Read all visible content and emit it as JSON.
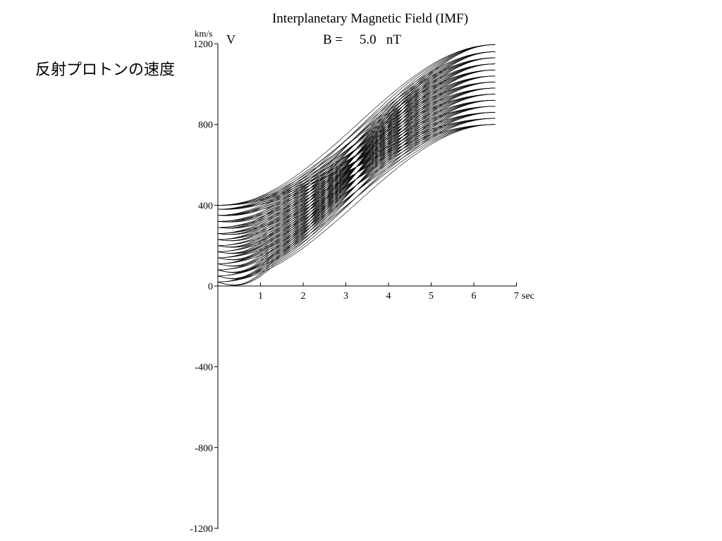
{
  "chart_data": {
    "type": "line",
    "title": "Interplanetary Magnetic Field (IMF)",
    "subtitle": "B =     5.0   nT",
    "annotation": "反射プロトンの速度",
    "ylabel": "V",
    "yunit": "km/s",
    "xunit": "sec",
    "xlim": [
      0,
      7
    ],
    "ylim": [
      -1200,
      1200
    ],
    "xticks": [
      1,
      2,
      3,
      4,
      5,
      6,
      7
    ],
    "yticks": [
      1200,
      800,
      400,
      0,
      -400,
      -800,
      -1200
    ],
    "ytick_labels": [
      "1200",
      "800",
      "400",
      "0",
      "-400",
      "-800",
      "-1200"
    ],
    "xtick_labels": [
      "1",
      "2",
      "3",
      "4",
      "5",
      "6",
      "7"
    ],
    "grid": false,
    "curve_model": {
      "t_end": 6.5,
      "start_speeds": [
        20,
        50,
        80,
        110,
        140,
        170,
        200,
        230,
        260,
        290,
        320,
        350,
        380,
        400
      ],
      "end_speeds": [
        800,
        830,
        860,
        890,
        920,
        950,
        980,
        1010,
        1040,
        1070,
        1100,
        1130,
        1160,
        1195
      ],
      "dip_depth": [
        0,
        15,
        30,
        45
      ]
    }
  }
}
